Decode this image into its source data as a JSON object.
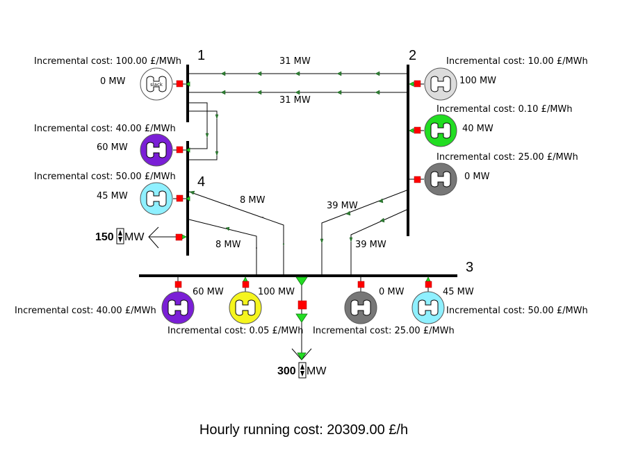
{
  "buses": [
    {
      "id": "1",
      "label": "1"
    },
    {
      "id": "2",
      "label": "2"
    },
    {
      "id": "3",
      "label": "3"
    },
    {
      "id": "4",
      "label": "4"
    }
  ],
  "generators": [
    {
      "bus": "1",
      "cost": "Incremental cost: 100.00 £/MWh",
      "output": "0 MW",
      "color": "#ffffff",
      "tag": "slack"
    },
    {
      "bus": "2",
      "cost": "Incremental cost: 10.00 £/MWh",
      "output": "100 MW",
      "color": "#dcdcdc"
    },
    {
      "bus": "2",
      "cost": "Incremental cost: 0.10 £/MWh",
      "output": "40 MW",
      "color": "#22dd22"
    },
    {
      "bus": "2",
      "cost": "Incremental cost: 25.00 £/MWh",
      "output": "0 MW",
      "color": "#777777"
    },
    {
      "bus": "4",
      "cost": "Incremental cost: 40.00 £/MWh",
      "output": "60 MW",
      "color": "#7a1fd6"
    },
    {
      "bus": "4",
      "cost": "Incremental cost: 50.00 £/MWh",
      "output": "45 MW",
      "color": "#8ff0ff"
    },
    {
      "bus": "3",
      "cost": "Incremental cost: 40.00 £/MWh",
      "output": "60 MW",
      "color": "#7a1fd6"
    },
    {
      "bus": "3",
      "cost": "Incremental cost: 0.05 £/MWh",
      "output": "100 MW",
      "color": "#f5f51e"
    },
    {
      "bus": "3",
      "cost": "Incremental cost: 25.00 £/MWh",
      "output": "0 MW",
      "color": "#777777"
    },
    {
      "bus": "3",
      "cost": "Incremental cost: 50.00 £/MWh",
      "output": "45 MW",
      "color": "#8ff0ff"
    }
  ],
  "lines": [
    {
      "from": "2",
      "to": "1",
      "flow": "31 MW"
    },
    {
      "from": "2",
      "to": "1",
      "flow": "31 MW"
    },
    {
      "from": "3",
      "to": "4",
      "flow": "8 MW"
    },
    {
      "from": "3",
      "to": "4",
      "flow": "8 MW"
    },
    {
      "from": "2",
      "to": "3",
      "flow": "39 MW"
    },
    {
      "from": "2",
      "to": "3",
      "flow": "39 MW"
    }
  ],
  "loads": [
    {
      "bus": "4",
      "value": "150",
      "unit": "MW"
    },
    {
      "bus": "3",
      "value": "300",
      "unit": "MW"
    }
  ],
  "footer": {
    "running_cost": "Hourly running cost: 20309.00 £/h"
  },
  "colors": {
    "breaker": "#ff0000",
    "flow_arrow": "#2e7d32",
    "load_triangle": "#22dd22"
  }
}
